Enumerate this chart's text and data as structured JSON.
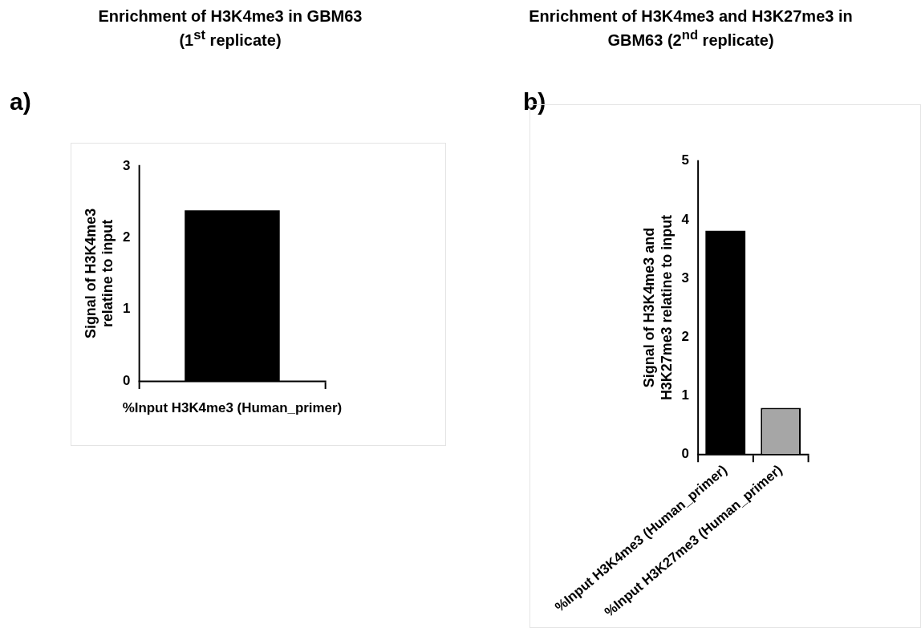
{
  "chart_data": [
    {
      "type": "bar",
      "title": "Enrichment of H3K4me3 in GBM63 (1$^{st}$ replicate)",
      "ylabel": "Signal of H3K4me3 relatine to input",
      "categories": [
        "%Input H3K4me3 (Human_primer)"
      ],
      "values": [
        2.38
      ],
      "colors": [
        "#000000"
      ],
      "ylim": [
        0,
        3
      ],
      "yticks": [
        0,
        1,
        2,
        3
      ],
      "grid": false,
      "legend": false,
      "annotations": [
        "a)"
      ]
    },
    {
      "type": "bar",
      "title": "Enrichment of H3K4me3 and H3K27me3 in GBM63 (2$^{nd}$ replicate)",
      "ylabel": "Signal of H3K4me3 and H3K27me3 relatine to input",
      "categories": [
        "%Input H3K4me3 (Human_primer)",
        "%Input H3K27me3 (Human_primer)"
      ],
      "values": [
        3.81,
        0.79
      ],
      "colors": [
        "#000000",
        "#a6a6a6"
      ],
      "ylim": [
        0,
        5
      ],
      "yticks": [
        0,
        1,
        2,
        3,
        4,
        5
      ],
      "grid": false,
      "legend": false,
      "annotations": [
        "b)"
      ]
    }
  ]
}
